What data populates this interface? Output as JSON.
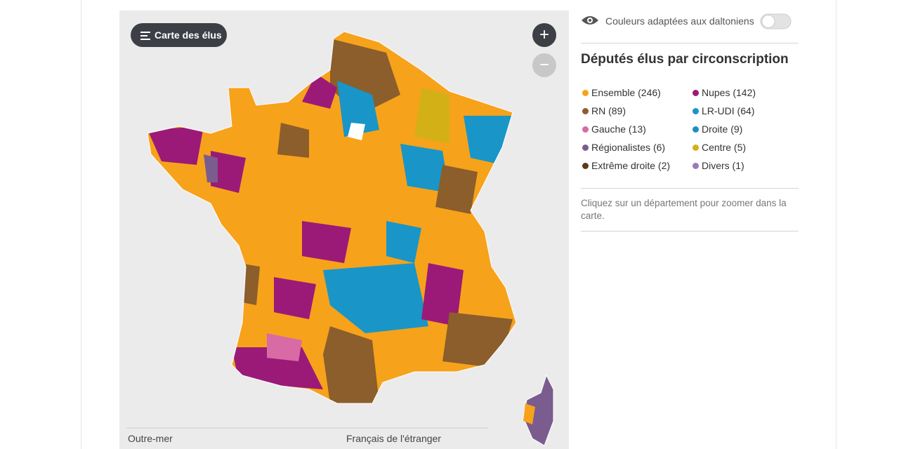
{
  "map_panel": {
    "menu_button": "Carte des élus",
    "bottom_left": "Outre-mer",
    "bottom_right": "Français de l'étranger"
  },
  "side_panel": {
    "colorblind_toggle": "Couleurs adaptées aux daltoniens",
    "title": "Députés élus par circonscription",
    "legend": [
      {
        "label": "Ensemble (246)",
        "color": "#f7a21b"
      },
      {
        "label": "Nupes (142)",
        "color": "#9b1a77"
      },
      {
        "label": "RN (89)",
        "color": "#8b5e2b"
      },
      {
        "label": "LR-UDI (64)",
        "color": "#1995c8"
      },
      {
        "label": "Gauche (13)",
        "color": "#d86aa6"
      },
      {
        "label": "Droite (9)",
        "color": "#1b8fc6"
      },
      {
        "label": "Régionalistes (6)",
        "color": "#7a5c8e"
      },
      {
        "label": "Centre (5)",
        "color": "#d4b017"
      },
      {
        "label": "Extrême droite (2)",
        "color": "#5b3a1a"
      },
      {
        "label": "Divers (1)",
        "color": "#9a7bb5"
      }
    ],
    "hint": "Cliquez sur un département pour zoomer dans la carte."
  }
}
